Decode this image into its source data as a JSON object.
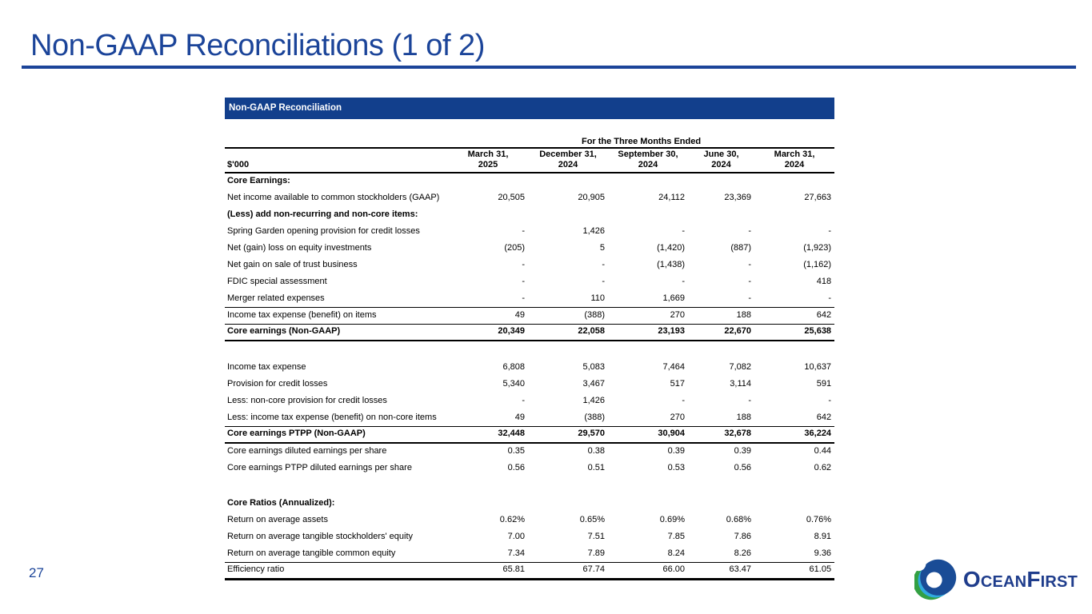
{
  "slide": {
    "title": "Non-GAAP Reconciliations (1 of 2)",
    "page_number": "27",
    "accent_color": "#1B4499"
  },
  "table": {
    "header_bar_label": "Non-GAAP Reconciliation",
    "header_bar_color": "#123F8C",
    "period_header": "For the Three Months Ended",
    "unit_label": "$'000",
    "columns": [
      {
        "month": "March 31,",
        "year": "2025"
      },
      {
        "month": "December 31,",
        "year": "2024"
      },
      {
        "month": "September 30,",
        "year": "2024"
      },
      {
        "month": "June 30,",
        "year": "2024"
      },
      {
        "month": "March 31,",
        "year": "2024"
      }
    ],
    "rows": [
      {
        "label": "Core Earnings:",
        "bold": true,
        "values": null
      },
      {
        "label": "Net income available to common stockholders (GAAP)",
        "values": [
          "20,505",
          "20,905",
          "24,112",
          "23,369",
          "27,663"
        ]
      },
      {
        "label": "(Less) add non-recurring and non-core items:",
        "bold": true,
        "values": null
      },
      {
        "label": "Spring Garden opening provision for credit losses",
        "values": [
          "-",
          "1,426",
          "-",
          "-",
          "-"
        ]
      },
      {
        "label": "Net (gain) loss on equity investments",
        "values": [
          "(205)",
          "5",
          "(1,420)",
          "(887)",
          "(1,923)"
        ]
      },
      {
        "label": "Net gain on sale of trust business",
        "values": [
          "-",
          "-",
          "(1,438)",
          "-",
          "(1,162)"
        ]
      },
      {
        "label": "FDIC special assessment",
        "values": [
          "-",
          "-",
          "-",
          "-",
          "418"
        ]
      },
      {
        "label": "Merger related expenses",
        "values": [
          "-",
          "110",
          "1,669",
          "-",
          "-"
        ]
      },
      {
        "label": "Income tax expense (benefit) on items",
        "rule_top": true,
        "values": [
          "49",
          "(388)",
          "270",
          "188",
          "642"
        ]
      },
      {
        "label": "Core earnings (Non-GAAP)",
        "bold": true,
        "rule_top": true,
        "rule_bottom": "thick",
        "values": [
          "20,349",
          "22,058",
          "23,193",
          "22,670",
          "25,638"
        ]
      },
      {
        "spacer": true
      },
      {
        "label": "Income tax expense",
        "values": [
          "6,808",
          "5,083",
          "7,464",
          "7,082",
          "10,637"
        ]
      },
      {
        "label": "Provision for credit losses",
        "values": [
          "5,340",
          "3,467",
          "517",
          "3,114",
          "591"
        ]
      },
      {
        "label": "Less: non-core provision for credit losses",
        "values": [
          "-",
          "1,426",
          "-",
          "-",
          "-"
        ]
      },
      {
        "label": "Less: income tax expense (benefit) on non-core items",
        "values": [
          "49",
          "(388)",
          "270",
          "188",
          "642"
        ]
      },
      {
        "label": "Core earnings PTPP (Non-GAAP)",
        "bold": true,
        "rule_top": true,
        "rule_bottom": "thick",
        "values": [
          "32,448",
          "29,570",
          "30,904",
          "32,678",
          "36,224"
        ]
      },
      {
        "label": "Core earnings diluted earnings per share",
        "values": [
          "0.35",
          "0.38",
          "0.39",
          "0.39",
          "0.44"
        ]
      },
      {
        "label": "Core earnings PTPP diluted earnings per share",
        "values": [
          "0.56",
          "0.51",
          "0.53",
          "0.56",
          "0.62"
        ]
      },
      {
        "spacer": true
      },
      {
        "label": "Core Ratios (Annualized):",
        "bold": true,
        "values": null
      },
      {
        "label": "Return on average assets",
        "values": [
          "0.62%",
          "0.65%",
          "0.69%",
          "0.68%",
          "0.76%"
        ]
      },
      {
        "label": "Return on average tangible stockholders' equity",
        "values": [
          "7.00",
          "7.51",
          "7.85",
          "7.86",
          "8.91"
        ]
      },
      {
        "label": "Return on average tangible common equity",
        "values": [
          "7.34",
          "7.89",
          "8.24",
          "8.26",
          "9.36"
        ]
      },
      {
        "label": "Efficiency ratio",
        "rule_top": true,
        "rule_bottom": "end",
        "values": [
          "65.81",
          "67.74",
          "66.00",
          "63.47",
          "61.05"
        ]
      }
    ]
  },
  "logo": {
    "icon_name": "oceanfirst-wave-swirl-icon",
    "name_parts": [
      "O",
      "CEAN",
      "F",
      "IRST"
    ],
    "colors": {
      "dark_blue": "#1A4C96",
      "green": "#33A043",
      "light_blue": "#30AADF",
      "text_navy": "#1F3D8C"
    }
  }
}
